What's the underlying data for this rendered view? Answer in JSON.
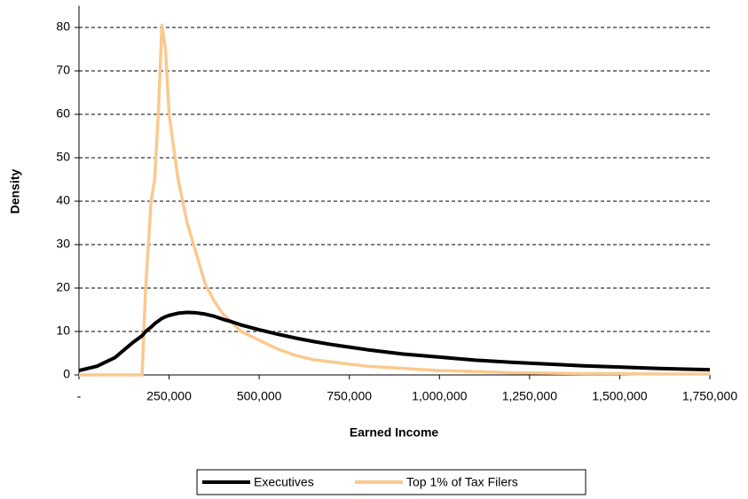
{
  "chart_data": {
    "type": "line",
    "xlabel": "Earned Income",
    "ylabel": "Density",
    "x": [
      0,
      50000,
      100000,
      150000,
      175000,
      185000,
      200000,
      210000,
      220000,
      230000,
      240000,
      250000,
      275000,
      300000,
      325000,
      350000,
      375000,
      400000,
      425000,
      450000,
      500000,
      550000,
      600000,
      650000,
      700000,
      800000,
      900000,
      1000000,
      1100000,
      1200000,
      1300000,
      1400000,
      1500000,
      1600000,
      1750000
    ],
    "series": [
      {
        "name": "Executives",
        "color": "#000000",
        "values": [
          1,
          2,
          4,
          7.5,
          9,
          10,
          11,
          11.8,
          12.4,
          13,
          13.4,
          13.7,
          14.2,
          14.4,
          14.3,
          14,
          13.5,
          12.8,
          12.2,
          11.5,
          10.4,
          9.4,
          8.5,
          7.7,
          7,
          5.8,
          4.8,
          4.1,
          3.4,
          2.9,
          2.5,
          2.1,
          1.8,
          1.5,
          1.2
        ]
      },
      {
        "name": "Top 1% of Tax Filers",
        "color": "#fac98f",
        "values": [
          0,
          0,
          0,
          0,
          0,
          20,
          40,
          45,
          60,
          80.5,
          75,
          60,
          45,
          35,
          28,
          21,
          17,
          14,
          12,
          10,
          8,
          6,
          4.5,
          3.5,
          3,
          2,
          1.5,
          1,
          0.8,
          0.5,
          0.4,
          0.3,
          0.3,
          0.2,
          0.2
        ]
      }
    ],
    "xlim": [
      0,
      1750000
    ],
    "xticks": [
      {
        "value": 0,
        "label": "-"
      },
      {
        "value": 250000,
        "label": "250,000"
      },
      {
        "value": 500000,
        "label": "500,000"
      },
      {
        "value": 750000,
        "label": "750,000"
      },
      {
        "value": 1000000,
        "label": "1,000,000"
      },
      {
        "value": 1250000,
        "label": "1,250,000"
      },
      {
        "value": 1500000,
        "label": "1,500,000"
      },
      {
        "value": 1750000,
        "label": "1,750,000"
      }
    ],
    "ylim": [
      0,
      85
    ],
    "yticks": [
      0,
      10,
      20,
      30,
      40,
      50,
      60,
      70,
      80
    ],
    "grid": true,
    "legend": "bottom"
  }
}
